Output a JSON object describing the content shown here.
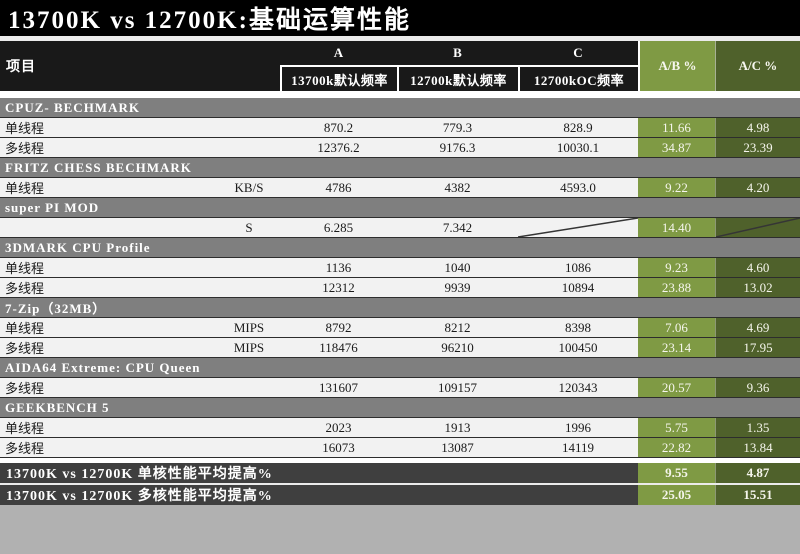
{
  "title": "13700K vs 12700K:基础运算性能",
  "header": {
    "item_label": "项目",
    "col_a_letter": "A",
    "col_a_freq": "13700k默认频率",
    "col_b_letter": "B",
    "col_b_freq": "12700k默认频率",
    "col_c_letter": "C",
    "col_c_freq": "12700kOC频率",
    "ab_label": "A/B %",
    "ac_label": "A/C %"
  },
  "colors": {
    "title_black": "#000000",
    "header_black": "#191919",
    "ab_green": "#7f9a44",
    "ac_green": "#4f612b",
    "section_gray": "#7f7f7f",
    "row_bg": "#f2f2f2",
    "summary_dark": "#3f3f3f"
  },
  "chart_data": {
    "type": "table",
    "title": "13700K vs 12700K:基础运算性能",
    "columns": [
      "项目",
      "单位",
      "A 13700k默认频率",
      "B 12700k默认频率",
      "C 12700kOC频率",
      "A/B %",
      "A/C %"
    ],
    "rows": [
      {
        "type": "section",
        "label": "CPUZ- BECHMARK"
      },
      {
        "type": "data",
        "label": "单线程",
        "unit": "",
        "a": "870.2",
        "b": "779.3",
        "c": "828.9",
        "ab": "11.66",
        "ac": "4.98"
      },
      {
        "type": "data",
        "label": "多线程",
        "unit": "",
        "a": "12376.2",
        "b": "9176.3",
        "c": "10030.1",
        "ab": "34.87",
        "ac": "23.39"
      },
      {
        "type": "section",
        "label": "FRITZ CHESS BECHMARK"
      },
      {
        "type": "data",
        "label": "单线程",
        "unit": "KB/S",
        "a": "4786",
        "b": "4382",
        "c": "4593.0",
        "ab": "9.22",
        "ac": "4.20"
      },
      {
        "type": "section",
        "label": "super PI MOD"
      },
      {
        "type": "data",
        "label": "",
        "unit": "S",
        "a": "6.285",
        "b": "7.342",
        "c": null,
        "ab": "14.40",
        "ac": null
      },
      {
        "type": "section",
        "label": "3DMARK CPU Profile"
      },
      {
        "type": "data",
        "label": "单线程",
        "unit": "",
        "a": "1136",
        "b": "1040",
        "c": "1086",
        "ab": "9.23",
        "ac": "4.60"
      },
      {
        "type": "data",
        "label": "多线程",
        "unit": "",
        "a": "12312",
        "b": "9939",
        "c": "10894",
        "ab": "23.88",
        "ac": "13.02"
      },
      {
        "type": "section",
        "label": "7-Zip（32MB）"
      },
      {
        "type": "data",
        "label": "单线程",
        "unit": "MIPS",
        "a": "8792",
        "b": "8212",
        "c": "8398",
        "ab": "7.06",
        "ac": "4.69"
      },
      {
        "type": "data",
        "label": "多线程",
        "unit": "MIPS",
        "a": "118476",
        "b": "96210",
        "c": "100450",
        "ab": "23.14",
        "ac": "17.95"
      },
      {
        "type": "section",
        "label": "AIDA64 Extreme: CPU Queen"
      },
      {
        "type": "data",
        "label": "多线程",
        "unit": "",
        "a": "131607",
        "b": "109157",
        "c": "120343",
        "ab": "20.57",
        "ac": "9.36"
      },
      {
        "type": "section",
        "label": "GEEKBENCH 5"
      },
      {
        "type": "data",
        "label": "单线程",
        "unit": "",
        "a": "2023",
        "b": "1913",
        "c": "1996",
        "ab": "5.75",
        "ac": "1.35"
      },
      {
        "type": "data",
        "label": "多线程",
        "unit": "",
        "a": "16073",
        "b": "13087",
        "c": "14119",
        "ab": "22.82",
        "ac": "13.84"
      }
    ],
    "summary": [
      {
        "label": "13700K vs 12700K 单核性能平均提高%",
        "ab": "9.55",
        "ac": "4.87"
      },
      {
        "label": "13700K vs 12700K 多核性能平均提高%",
        "ab": "25.05",
        "ac": "15.51"
      }
    ]
  }
}
